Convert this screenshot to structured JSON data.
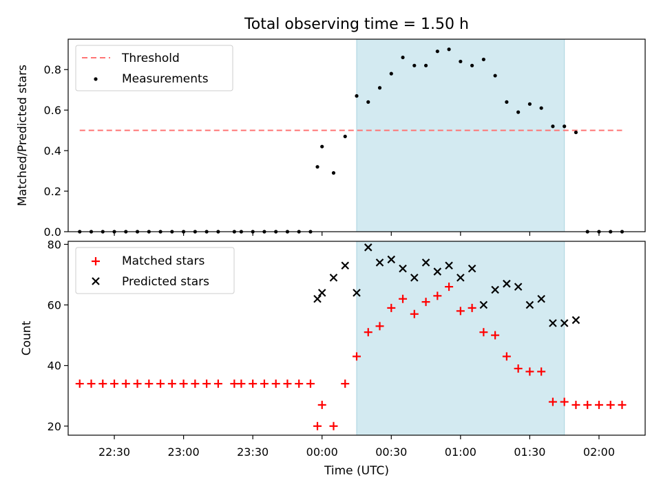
{
  "chart_data": [
    {
      "type": "scatter",
      "title": "Total observing time = 1.50 h",
      "xlabel": "",
      "ylabel": "Matched/Predicted stars",
      "ylim": [
        0,
        0.95
      ],
      "yticks": [
        "0.0",
        "0.2",
        "0.4",
        "0.6",
        "0.8"
      ],
      "ytick_values": [
        0,
        0.2,
        0.4,
        0.6,
        0.8
      ],
      "shaded_span": [
        "00:15",
        "01:45"
      ],
      "shade_color": "#d3eaf1",
      "threshold": {
        "name": "Threshold",
        "value": 0.5,
        "x_range": [
          "22:15",
          "02:10"
        ],
        "color": "#ff7373"
      },
      "series": [
        {
          "name": "Measurements",
          "color": "#000000",
          "marker": "dot",
          "x": [
            "22:15",
            "22:20",
            "22:25",
            "22:30",
            "22:35",
            "22:40",
            "22:45",
            "22:50",
            "22:55",
            "23:00",
            "23:05",
            "23:10",
            "23:15",
            "23:22",
            "23:25",
            "23:30",
            "23:35",
            "23:40",
            "23:45",
            "23:50",
            "23:55",
            "23:58",
            "00:00",
            "00:05",
            "00:10",
            "00:15",
            "00:20",
            "00:25",
            "00:30",
            "00:35",
            "00:40",
            "00:45",
            "00:50",
            "00:55",
            "01:00",
            "01:05",
            "01:10",
            "01:15",
            "01:20",
            "01:25",
            "01:30",
            "01:35",
            "01:40",
            "01:45",
            "01:50",
            "01:55",
            "02:00",
            "02:05",
            "02:10"
          ],
          "y": [
            0,
            0,
            0,
            0,
            0,
            0,
            0,
            0,
            0,
            0,
            0,
            0,
            0,
            0,
            0,
            0,
            0,
            0,
            0,
            0,
            0,
            0.32,
            0.42,
            0.29,
            0.47,
            0.67,
            0.64,
            0.71,
            0.78,
            0.86,
            0.82,
            0.82,
            0.89,
            0.9,
            0.84,
            0.82,
            0.85,
            0.77,
            0.64,
            0.59,
            0.63,
            0.61,
            0.52,
            0.52,
            0.49,
            0,
            0,
            0,
            0
          ]
        }
      ]
    },
    {
      "type": "scatter",
      "xlabel": "Time (UTC)",
      "ylabel": "Count",
      "ylim": [
        17,
        81
      ],
      "yticks": [
        "20",
        "40",
        "60",
        "80"
      ],
      "ytick_values": [
        20,
        40,
        60,
        80
      ],
      "xticks": [
        "22:30",
        "23:00",
        "23:30",
        "00:00",
        "00:30",
        "01:00",
        "01:30",
        "02:00"
      ],
      "xlim": [
        "22:10",
        "02:20"
      ],
      "shaded_span": [
        "00:15",
        "01:45"
      ],
      "shade_color": "#d3eaf1",
      "series": [
        {
          "name": "Matched stars",
          "color": "#ff0000",
          "marker": "plus",
          "x": [
            "22:15",
            "22:20",
            "22:25",
            "22:30",
            "22:35",
            "22:40",
            "22:45",
            "22:50",
            "22:55",
            "23:00",
            "23:05",
            "23:10",
            "23:15",
            "23:22",
            "23:25",
            "23:30",
            "23:35",
            "23:40",
            "23:45",
            "23:50",
            "23:55",
            "23:58",
            "00:00",
            "00:05",
            "00:10",
            "00:15",
            "00:20",
            "00:25",
            "00:30",
            "00:35",
            "00:40",
            "00:45",
            "00:50",
            "00:55",
            "01:00",
            "01:05",
            "01:10",
            "01:15",
            "01:20",
            "01:25",
            "01:30",
            "01:35",
            "01:40",
            "01:45",
            "01:50",
            "01:55",
            "02:00",
            "02:05",
            "02:10"
          ],
          "y": [
            34,
            34,
            34,
            34,
            34,
            34,
            34,
            34,
            34,
            34,
            34,
            34,
            34,
            34,
            34,
            34,
            34,
            34,
            34,
            34,
            34,
            20,
            27,
            20,
            34,
            43,
            51,
            53,
            59,
            62,
            57,
            61,
            63,
            66,
            58,
            59,
            51,
            50,
            43,
            39,
            38,
            38,
            28,
            28,
            27,
            27,
            27,
            27,
            27
          ]
        },
        {
          "name": "Predicted stars",
          "color": "#000000",
          "marker": "x",
          "x": [
            "23:58",
            "00:00",
            "00:05",
            "00:10",
            "00:15",
            "00:20",
            "00:25",
            "00:30",
            "00:35",
            "00:40",
            "00:45",
            "00:50",
            "00:55",
            "01:00",
            "01:05",
            "01:10",
            "01:15",
            "01:20",
            "01:25",
            "01:30",
            "01:35",
            "01:40",
            "01:45",
            "01:50"
          ],
          "y": [
            62,
            64,
            69,
            73,
            64,
            79,
            74,
            75,
            72,
            69,
            74,
            71,
            73,
            69,
            72,
            60,
            65,
            67,
            66,
            60,
            62,
            54,
            54,
            55
          ]
        }
      ]
    }
  ]
}
